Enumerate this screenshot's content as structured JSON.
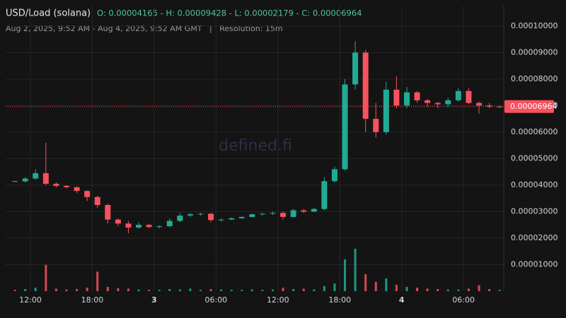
{
  "header": {
    "symbol": "USD/Load (solana)",
    "ohlc": "O: 0.00004165 - H: 0.00009428 - L: 0.00002179 - C: 0.00006964",
    "subtitle": "Aug 2, 2025, 9:52 AM - Aug 4, 2025, 9:52 AM GMT   |   Resolution: 15m",
    "watermark": "defined.fi"
  },
  "chart_data": {
    "type": "candlestick",
    "up_color": "#22ab94",
    "down_color": "#f7525f",
    "x": [
      10.5,
      11.5,
      12.5,
      13.5,
      14.5,
      15.5,
      16.5,
      17.5,
      18.5,
      19.5,
      20.5,
      21.5,
      22.5,
      23.5,
      24.5,
      25.5,
      26.5,
      27.5,
      28.5,
      29.5,
      30.5,
      31.5,
      32.5,
      33.5,
      34.5,
      35.5,
      36.5,
      37.5,
      38.5,
      39.5,
      40.5,
      41.5,
      42.5,
      43.5,
      44.5,
      45.5,
      46.5,
      47.5,
      48.5,
      49.5,
      50.5,
      51.5,
      52.5,
      53.5,
      54.5,
      55.5,
      56.5,
      57.5
    ],
    "open": [
      4.15e-05,
      4.14e-05,
      4.25e-05,
      4.45e-05,
      4.05e-05,
      3.97e-05,
      3.92e-05,
      3.78e-05,
      3.55e-05,
      3.25e-05,
      2.7e-05,
      2.55e-05,
      2.4e-05,
      2.5e-05,
      2.42e-05,
      2.45e-05,
      2.65e-05,
      2.85e-05,
      2.9e-05,
      2.92e-05,
      2.68e-05,
      2.7e-05,
      2.75e-05,
      2.8e-05,
      2.9e-05,
      2.92e-05,
      2.95e-05,
      2.8e-05,
      3.05e-05,
      3e-05,
      3.1e-05,
      4.15e-05,
      4.6e-05,
      7.8e-05,
      9e-05,
      6.5e-05,
      6e-05,
      7.6e-05,
      7e-05,
      7.5e-05,
      7.2e-05,
      7.1e-05,
      7.05e-05,
      7.2e-05,
      7.55e-05,
      7.1e-05,
      7e-05,
      6.96e-05
    ],
    "high": [
      4.17e-05,
      4.3e-05,
      4.6e-05,
      5.6e-05,
      4.1e-05,
      4e-05,
      3.95e-05,
      3.8e-05,
      3.6e-05,
      3.3e-05,
      2.75e-05,
      2.65e-05,
      2.6e-05,
      2.55e-05,
      2.48e-05,
      2.75e-05,
      2.95e-05,
      2.95e-05,
      2.95e-05,
      2.95e-05,
      2.75e-05,
      2.78e-05,
      2.82e-05,
      2.92e-05,
      2.95e-05,
      3e-05,
      3e-05,
      3.1e-05,
      3.1e-05,
      3.15e-05,
      4.3e-05,
      4.7e-05,
      8e-05,
      9.428e-05,
      9.1e-05,
      7.1e-05,
      7.9e-05,
      8.1e-05,
      7.7e-05,
      7.55e-05,
      7.25e-05,
      7.15e-05,
      7.3e-05,
      7.65e-05,
      7.65e-05,
      7.15e-05,
      7.1e-05,
      7e-05
    ],
    "low": [
      4.12e-05,
      4.1e-05,
      4.2e-05,
      4e-05,
      3.92e-05,
      3.88e-05,
      3.7e-05,
      3.4e-05,
      3.15e-05,
      2.55e-05,
      2.45e-05,
      2.179e-05,
      2.35e-05,
      2.38e-05,
      2.36e-05,
      2.4e-05,
      2.6e-05,
      2.8e-05,
      2.85e-05,
      2.6e-05,
      2.62e-05,
      2.68e-05,
      2.72e-05,
      2.78e-05,
      2.85e-05,
      2.88e-05,
      2.7e-05,
      2.78e-05,
      2.95e-05,
      2.98e-05,
      3.05e-05,
      4.1e-05,
      4.55e-05,
      7.6e-05,
      6e-05,
      5.8e-05,
      5.9e-05,
      6.9e-05,
      6.9e-05,
      7.1e-05,
      6.95e-05,
      6.9e-05,
      6.95e-05,
      7.15e-05,
      7.05e-05,
      6.7e-05,
      6.9e-05,
      6.9e-05
    ],
    "close": [
      4.14e-05,
      4.25e-05,
      4.45e-05,
      4.05e-05,
      3.97e-05,
      3.92e-05,
      3.78e-05,
      3.55e-05,
      3.25e-05,
      2.7e-05,
      2.55e-05,
      2.4e-05,
      2.5e-05,
      2.42e-05,
      2.45e-05,
      2.65e-05,
      2.85e-05,
      2.9e-05,
      2.92e-05,
      2.68e-05,
      2.7e-05,
      2.75e-05,
      2.8e-05,
      2.9e-05,
      2.92e-05,
      2.95e-05,
      2.8e-05,
      3.05e-05,
      3e-05,
      3.1e-05,
      4.15e-05,
      4.6e-05,
      7.8e-05,
      9e-05,
      6.5e-05,
      6e-05,
      7.6e-05,
      7e-05,
      7.5e-05,
      7.2e-05,
      7.1e-05,
      7.05e-05,
      7.2e-05,
      7.55e-05,
      7.1e-05,
      7e-05,
      6.96e-05,
      6.964e-05
    ],
    "volume": [
      3,
      5,
      8,
      62,
      6,
      4,
      5,
      8,
      46,
      10,
      7,
      6,
      4,
      3,
      3,
      5,
      4,
      6,
      3,
      5,
      4,
      3,
      3,
      4,
      3,
      4,
      8,
      5,
      6,
      4,
      12,
      18,
      75,
      100,
      40,
      22,
      30,
      15,
      10,
      8,
      6,
      5,
      4,
      4,
      6,
      14,
      5,
      3
    ],
    "vlim": [
      0,
      100
    ],
    "xlim": [
      9.6,
      57.9
    ],
    "xticks": [
      {
        "value": 12,
        "label": "12:00"
      },
      {
        "value": 18,
        "label": "18:00"
      },
      {
        "value": 24,
        "label": "3"
      },
      {
        "value": 30,
        "label": "06:00"
      },
      {
        "value": 36,
        "label": "12:00"
      },
      {
        "value": 42,
        "label": "18:00"
      },
      {
        "value": 48,
        "label": "4"
      },
      {
        "value": 54,
        "label": "06:00"
      }
    ],
    "ylim": [
      0,
      0.0001077
    ],
    "yticks": [
      {
        "value": 1e-05,
        "label": "0.00001000"
      },
      {
        "value": 2e-05,
        "label": "0.00002000"
      },
      {
        "value": 3e-05,
        "label": "0.00003000"
      },
      {
        "value": 4e-05,
        "label": "0.00004000"
      },
      {
        "value": 5e-05,
        "label": "0.00005000"
      },
      {
        "value": 6e-05,
        "label": "0.00006000"
      },
      {
        "value": 7e-05,
        "label": "0.00007000"
      },
      {
        "value": 8e-05,
        "label": "0.00008000"
      },
      {
        "value": 9e-05,
        "label": "0.00009000"
      },
      {
        "value": 0.0001,
        "label": "0.00010000"
      }
    ],
    "last_price": {
      "value": 6.964e-05,
      "label": "0.00006964"
    },
    "grid": true
  }
}
